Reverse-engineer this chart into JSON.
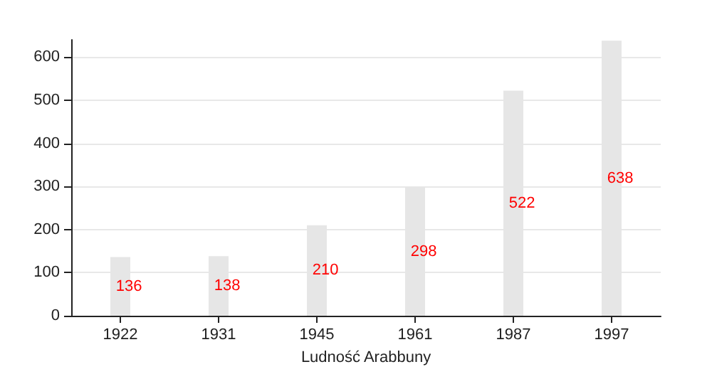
{
  "chart_data": {
    "type": "bar",
    "xlabel": "Ludność Arabbuny",
    "categories": [
      "1922",
      "1931",
      "1945",
      "1961",
      "1987",
      "1997"
    ],
    "values": [
      136,
      138,
      210,
      298,
      522,
      638
    ],
    "color": "#e6e6e6",
    "value_labels": [
      "136",
      "138",
      "210",
      "298",
      "522",
      "638"
    ],
    "ylim": [
      0,
      640
    ],
    "yticks": [
      0,
      100,
      200,
      300,
      400,
      500,
      600
    ],
    "grid": "y"
  }
}
